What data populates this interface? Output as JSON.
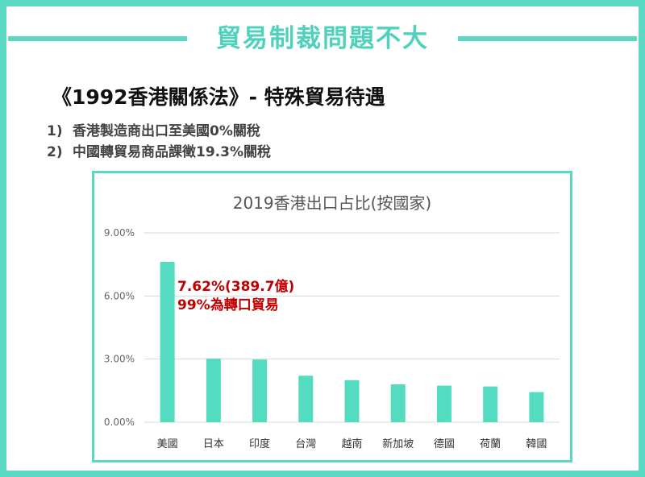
{
  "banner": {
    "title": "貿易制裁問題不大"
  },
  "heading": "《1992香港關係法》- 特殊貿易待遇",
  "points": [
    {
      "num": "1)",
      "text": "香港製造商出口至美國0%關稅"
    },
    {
      "num": "2)",
      "text": "中國轉貿易商品課徵19.3%關稅"
    }
  ],
  "colors": {
    "accent": "#5ad8c3",
    "bar": "#54dcc0",
    "annotation": "#c00000"
  },
  "chart_data": {
    "type": "bar",
    "title": "2019香港出口占比(按國家)",
    "categories": [
      "美國",
      "日本",
      "印度",
      "台灣",
      "越南",
      "新加坡",
      "德國",
      "荷蘭",
      "韓國"
    ],
    "values": [
      7.62,
      3.02,
      2.98,
      2.21,
      2.0,
      1.8,
      1.74,
      1.7,
      1.43
    ],
    "unit": "%",
    "ylim": [
      0,
      9
    ],
    "yticks": [
      0,
      3,
      6,
      9
    ],
    "ytick_labels": [
      "0.00%",
      "3.00%",
      "6.00%",
      "9.00%"
    ],
    "grid": true,
    "annotations": [
      "7.62%(389.7億)",
      "99%為轉口貿易"
    ]
  }
}
